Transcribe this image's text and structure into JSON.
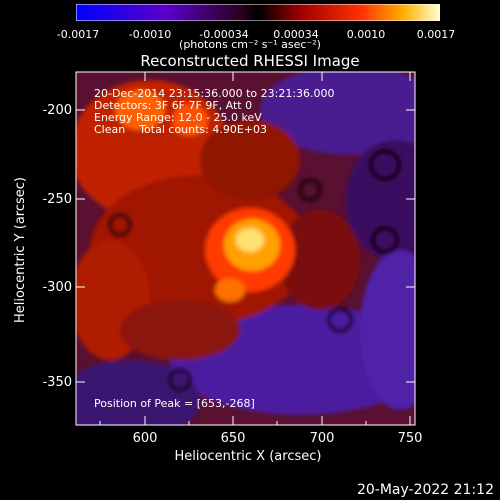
{
  "colorbar": {
    "ticks": [
      "-0.0017",
      "-0.0010",
      "-0.00034",
      "0.00034",
      "0.0010",
      "0.0017"
    ],
    "units": "(photons cm⁻² s⁻¹ asec⁻²)"
  },
  "title": "Reconstructed RHESSI Image",
  "annotations": {
    "time_range": "20-Dec-2014 23:15:36.000 to 23:21:36.000",
    "detectors": "Detectors: 3F 6F 7F 9F, Att 0",
    "energy": "Energy Range: 12.0 - 25.0 keV",
    "clean": "Clean    Total counts: 4.90E+03",
    "peak": "Position of Peak = [653,-268]"
  },
  "axes": {
    "xlabel": "Heliocentric X (arcsec)",
    "ylabel": "Heliocentric Y (arcsec)",
    "x_ticks": [
      "600",
      "650",
      "700",
      "750"
    ],
    "y_ticks": [
      "-200",
      "-250",
      "-300",
      "-350"
    ]
  },
  "footer_timestamp": "20-May-2022 21:12",
  "chart_data": {
    "type": "heatmap",
    "title": "Reconstructed RHESSI Image",
    "xlabel": "Heliocentric X (arcsec)",
    "ylabel": "Heliocentric Y (arcsec)",
    "xlim": [
      563,
      755
    ],
    "ylim": [
      -373,
      -185
    ],
    "colorbar_range": [
      -0.0017,
      0.0017
    ],
    "peak_position": [
      653,
      -268
    ]
  }
}
